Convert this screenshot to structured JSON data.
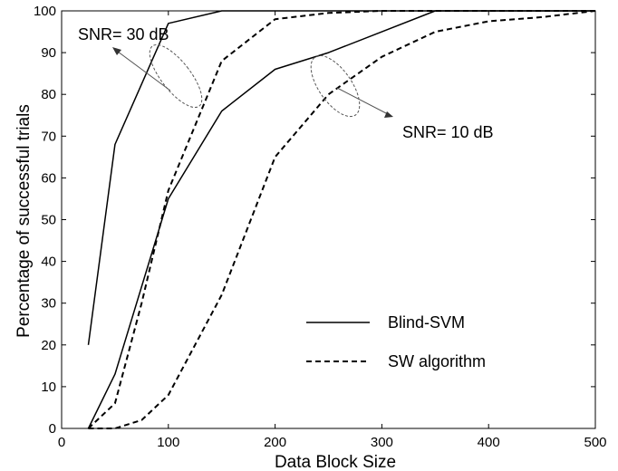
{
  "chart_data": {
    "type": "line",
    "title": "",
    "xlabel": "Data Block Size",
    "ylabel": "Percentage of successful trials",
    "xlim": [
      0,
      500
    ],
    "ylim": [
      0,
      100
    ],
    "xticks": [
      0,
      100,
      200,
      300,
      400,
      500
    ],
    "yticks": [
      0,
      10,
      20,
      30,
      40,
      50,
      60,
      70,
      80,
      90,
      100
    ],
    "grid": false,
    "legend": {
      "placement": "bottom-right",
      "entries": [
        {
          "label": "Blind-SVM",
          "style": "solid"
        },
        {
          "label": "SW algorithm",
          "style": "dashed"
        }
      ]
    },
    "annotations": [
      {
        "text": "SNR= 30 dB"
      },
      {
        "text": "SNR= 10 dB"
      }
    ],
    "series": [
      {
        "style": "solid",
        "group": "SNR= 30 dB",
        "x": [
          25,
          50,
          100,
          150,
          200,
          300,
          350,
          500
        ],
        "y": [
          20,
          68,
          97,
          100,
          100,
          100,
          100,
          100
        ]
      },
      {
        "style": "dashed",
        "group": "SNR= 30 dB",
        "x": [
          25,
          50,
          75,
          100,
          150,
          200,
          250,
          300,
          350,
          500
        ],
        "y": [
          0,
          6,
          30,
          57,
          88,
          98,
          99.5,
          100,
          100,
          100
        ]
      },
      {
        "style": "solid",
        "group": "SNR= 10 dB",
        "x": [
          25,
          50,
          100,
          150,
          200,
          250,
          300,
          350,
          500
        ],
        "y": [
          0,
          13,
          55,
          76,
          86,
          90,
          95,
          100,
          100
        ]
      },
      {
        "style": "dashed",
        "group": "SNR= 10 dB",
        "x": [
          25,
          50,
          75,
          100,
          150,
          200,
          250,
          300,
          350,
          400,
          450,
          500
        ],
        "y": [
          0,
          0,
          2,
          8,
          32,
          65,
          80,
          89,
          95,
          97.5,
          98.5,
          100
        ]
      }
    ],
    "colors": {
      "line": "#000000",
      "annotation": "#555555"
    }
  }
}
